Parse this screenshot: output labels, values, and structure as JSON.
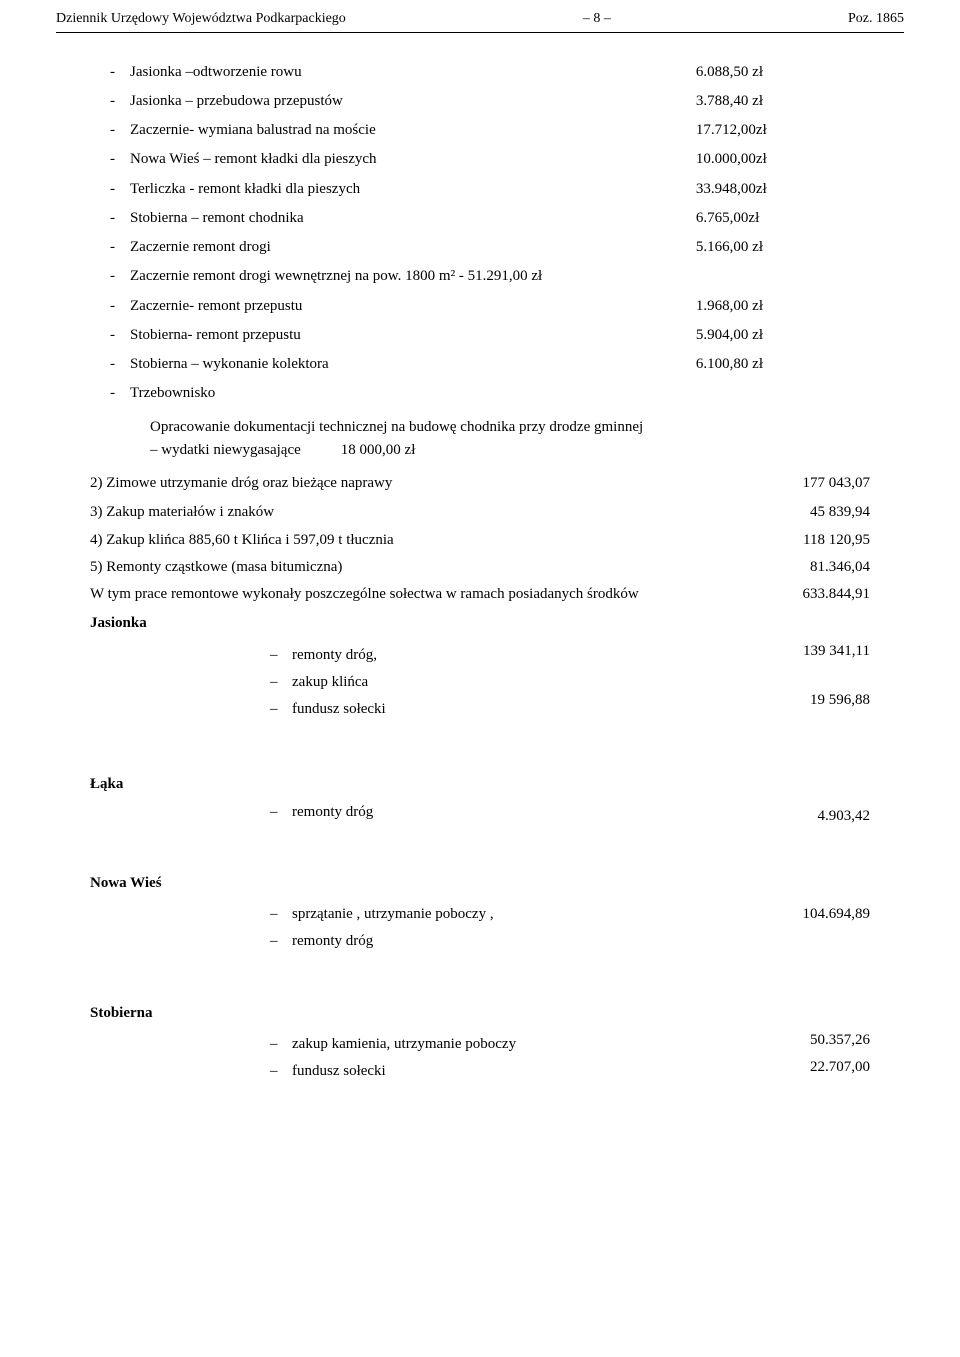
{
  "header": {
    "left": "Dziennik Urzędowy Województwa Podkarpackiego",
    "center": "– 8 –",
    "right": "Poz. 1865"
  },
  "dash_rows": [
    {
      "label": "Jasionka –odtworzenie rowu",
      "amount": "6.088,50 zł"
    },
    {
      "label": "Jasionka – przebudowa przepustów",
      "amount": "3.788,40 zł"
    },
    {
      "label": "Zaczernie- wymiana balustrad na moście",
      "amount": "17.712,00zł"
    },
    {
      "label": "Nowa Wieś – remont kładki dla pieszych",
      "amount": "10.000,00zł"
    },
    {
      "label": "Terliczka -    remont kładki dla pieszych",
      "amount": "33.948,00zł"
    },
    {
      "label": "Stobierna – remont chodnika",
      "amount": "6.765,00zł"
    },
    {
      "label": "Zaczernie remont drogi",
      "amount": "5.166,00 zł"
    },
    {
      "label": "Zaczernie remont drogi wewnętrznej na pow. 1800 m² -  51.291,00 zł",
      "amount": ""
    },
    {
      "label": "Zaczernie- remont przepustu",
      "amount": "1.968,00 zł"
    },
    {
      "label": "Stobierna- remont przepustu",
      "amount": "5.904,00 zł"
    },
    {
      "label": "Stobierna – wykonanie kolektora",
      "amount": "6.100,80 zł"
    },
    {
      "label": "Trzebownisko",
      "amount": ""
    }
  ],
  "trzeb": {
    "line1": "Opracowanie dokumentacji technicznej na budowę chodnika przy drodze gminnej",
    "line2_left": "– wydatki niewygasające",
    "line2_right": "18 000,00 zł"
  },
  "items": {
    "i2_label": "2) Zimowe utrzymanie dróg oraz bieżące naprawy",
    "i2_amount": "177 043,07",
    "i3_label": "3) Zakup materiałów i znaków",
    "i3_amount": "45 839,94",
    "i4_label": "4) Zakup klińca 885,60 t Klińca i 597,09 t tłucznia",
    "i4_amount": "118 120,95",
    "i5_label": "5) Remonty cząstkowe (masa bitumiczna)",
    "i5_amount": "81.346,04",
    "w_label": "W tym prace remontowe wykonały poszczególne sołectwa w ramach posiadanych środków",
    "w_amount": "633.844,91"
  },
  "jasionka": {
    "title": "Jasionka",
    "r1": "remonty dróg,",
    "r2": "zakup klińca",
    "r3": "fundusz sołecki",
    "amt1": "139 341,11",
    "amt2": "19 596,88"
  },
  "laka": {
    "title": "Łąka",
    "r1": "remonty dróg",
    "amt": "4.903,42"
  },
  "nowa": {
    "title": "Nowa Wieś",
    "r1": "sprzątanie , utrzymanie poboczy ,",
    "r2": "remonty dróg",
    "amt": "104.694,89"
  },
  "stobierna": {
    "title": "Stobierna",
    "r1": "zakup kamienia, utrzymanie poboczy",
    "r2": "fundusz sołecki",
    "amt1": "50.357,26",
    "amt2": "22.707,00"
  }
}
